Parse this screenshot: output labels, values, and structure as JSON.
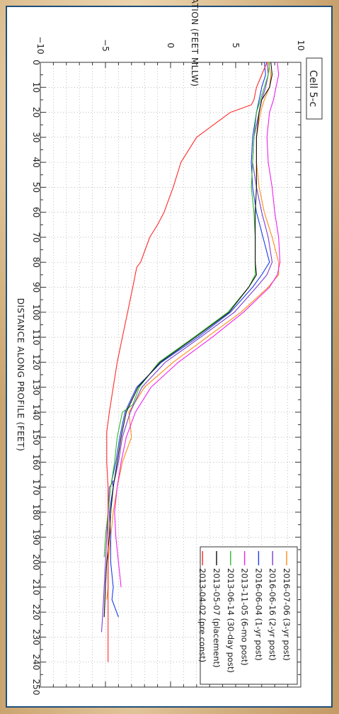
{
  "chart_data": {
    "type": "line",
    "title": "Cell 5-c",
    "xlabel": "DISTANCE ALONG PROFILE (FEET)",
    "ylabel": "ELEVATION (FEET MLLW)",
    "xlim": [
      0,
      250
    ],
    "ylim": [
      -10,
      10
    ],
    "x_ticks": [
      0,
      10,
      20,
      30,
      40,
      50,
      60,
      70,
      80,
      90,
      100,
      110,
      120,
      130,
      140,
      150,
      160,
      170,
      180,
      190,
      200,
      210,
      220,
      230,
      240,
      250
    ],
    "y_ticks": [
      -10,
      -5,
      0,
      5,
      10
    ],
    "grid": true,
    "legend_position": "bottom-right",
    "series": [
      {
        "name": "2016-07-06 (3-yr post)",
        "color": "#ff8c1a",
        "x": [
          0,
          5,
          10,
          15,
          20,
          30,
          40,
          50,
          60,
          70,
          80,
          85,
          90,
          100,
          110,
          120,
          130,
          140,
          150,
          160,
          170,
          180,
          190,
          200,
          210,
          215
        ],
        "y": [
          7.5,
          7.7,
          7.6,
          7.2,
          6.9,
          6.6,
          6.6,
          6.8,
          7.2,
          7.8,
          8.3,
          8.3,
          7.5,
          5.4,
          2.8,
          0.2,
          -2.0,
          -3.2,
          -3.0,
          -3.7,
          -4.1,
          -4.4,
          -4.6,
          -4.8,
          -4.8,
          -4.9
        ]
      },
      {
        "name": "2016-06-16 (2-yr post)",
        "color": "#7b3fd1",
        "x": [
          0,
          5,
          10,
          15,
          20,
          30,
          40,
          50,
          60,
          70,
          80,
          85,
          90,
          100,
          110,
          120,
          130,
          140,
          150,
          160,
          167,
          170,
          180,
          190,
          200,
          210,
          220,
          228
        ],
        "y": [
          7.4,
          7.5,
          7.3,
          7.0,
          6.8,
          6.4,
          6.3,
          6.6,
          7.0,
          7.5,
          7.8,
          7.4,
          6.6,
          4.9,
          2.3,
          -0.4,
          -2.2,
          -3.1,
          -3.7,
          -4.0,
          -4.3,
          -4.7,
          -4.8,
          -4.9,
          -5.0,
          -5.1,
          -5.2,
          -5.3
        ]
      },
      {
        "name": "2016-06-04 (1-yr post)",
        "color": "#1a3ee8",
        "x": [
          0,
          5,
          10,
          15,
          20,
          30,
          40,
          50,
          60,
          70,
          80,
          85,
          90,
          100,
          110,
          120,
          130,
          140,
          150,
          160,
          167,
          170,
          180,
          190,
          200,
          210,
          215,
          222
        ],
        "y": [
          7.2,
          7.3,
          7.0,
          6.8,
          6.6,
          6.3,
          6.2,
          6.3,
          6.6,
          7.1,
          7.6,
          7.0,
          6.3,
          4.6,
          2.1,
          -0.7,
          -2.6,
          -3.5,
          -3.9,
          -4.2,
          -4.5,
          -4.4,
          -4.7,
          -4.6,
          -4.6,
          -4.4,
          -4.5,
          -4.0
        ]
      },
      {
        "name": "2013-11-05 (6-mo post)",
        "color": "#ee22ee",
        "x": [
          0,
          5,
          10,
          15,
          20,
          30,
          40,
          50,
          60,
          70,
          80,
          85,
          90,
          100,
          110,
          120,
          130,
          140,
          150,
          160,
          170,
          180,
          190,
          200,
          210
        ],
        "y": [
          8.2,
          8.3,
          8.1,
          7.9,
          7.6,
          7.4,
          7.5,
          7.8,
          8.0,
          8.3,
          8.4,
          8.2,
          7.6,
          5.6,
          3.2,
          0.6,
          -1.5,
          -2.7,
          -3.4,
          -3.8,
          -4.1,
          -4.3,
          -4.2,
          -4.0,
          -3.8
        ]
      },
      {
        "name": "2013-06-14 (30-day post)",
        "color": "#2eb82e",
        "x": [
          0,
          5,
          10,
          15,
          20,
          30,
          40,
          50,
          60,
          70,
          80,
          85,
          90,
          100,
          110,
          120,
          130,
          137,
          140,
          150,
          160,
          170,
          180,
          190,
          198
        ],
        "y": [
          7.6,
          7.5,
          7.2,
          6.9,
          6.6,
          6.4,
          6.3,
          6.2,
          6.4,
          6.5,
          6.5,
          6.5,
          6.0,
          4.4,
          1.8,
          -0.9,
          -2.4,
          -2.9,
          -3.7,
          -4.1,
          -4.3,
          -4.6,
          -4.8,
          -5.0,
          -5.1
        ]
      },
      {
        "name": "2013-05-07 (placement)",
        "color": "#111111",
        "x": [
          0,
          5,
          10,
          15,
          20,
          30,
          40,
          50,
          60,
          70,
          80,
          85,
          90,
          100,
          110,
          120,
          130,
          140,
          150,
          160,
          170,
          180,
          190,
          200,
          210,
          222
        ],
        "y": [
          7.7,
          7.8,
          7.6,
          7.0,
          6.8,
          6.6,
          6.6,
          6.6,
          6.5,
          6.5,
          6.5,
          6.6,
          6.0,
          4.5,
          1.9,
          -0.8,
          -2.5,
          -3.4,
          -3.8,
          -4.1,
          -4.4,
          -4.6,
          -4.7,
          -4.9,
          -5.0,
          -5.1
        ]
      },
      {
        "name": "2013-04-02 (pre const)",
        "color": "#ff2a2a",
        "x": [
          0,
          5,
          10,
          15,
          17,
          20,
          30,
          40,
          50,
          60,
          65,
          70,
          80,
          82,
          90,
          100,
          110,
          120,
          130,
          140,
          148,
          160,
          170,
          180,
          190,
          200,
          210,
          220,
          230,
          240
        ],
        "y": [
          7.4,
          7.0,
          6.6,
          6.4,
          6.2,
          4.6,
          2.0,
          0.8,
          0.2,
          -0.5,
          -1.0,
          -1.6,
          -2.3,
          -2.6,
          -2.9,
          -3.3,
          -3.7,
          -4.1,
          -4.4,
          -4.7,
          -4.9,
          -4.9,
          -4.8,
          -4.8,
          -4.8,
          -4.8,
          -4.8,
          -4.8,
          -4.8,
          -4.8
        ]
      }
    ]
  }
}
